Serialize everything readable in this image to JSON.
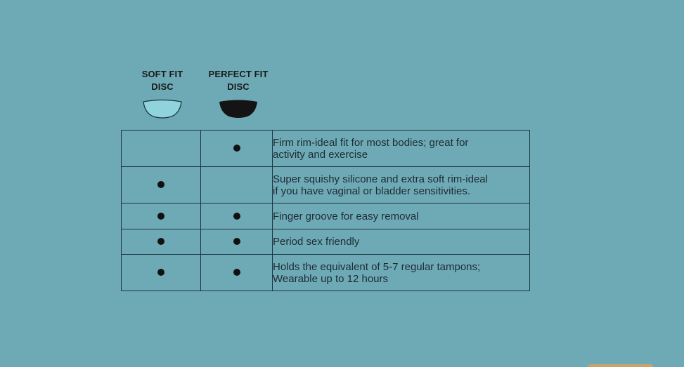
{
  "colors": {
    "background": "#6eaab5",
    "soft_disc": "#8fd3dd",
    "perfect_disc": "#141414",
    "corner_tab": "#c8a26a"
  },
  "columns": [
    {
      "line1": "SOFT FIT",
      "line2": "DISC",
      "icon": "soft-fit-disc-icon"
    },
    {
      "line1": "PERFECT FIT",
      "line2": "DISC",
      "icon": "perfect-fit-disc-icon"
    }
  ],
  "rows": [
    {
      "soft": false,
      "perfect": true,
      "line1": "Firm rim-ideal fit for most bodies; great for",
      "line2": "activity and exercise"
    },
    {
      "soft": true,
      "perfect": false,
      "line1": "Super squishy silicone and extra soft rim-ideal",
      "line2": "if you have vaginal or bladder sensitivities."
    },
    {
      "soft": true,
      "perfect": true,
      "line1": "Finger groove for easy removal",
      "line2": ""
    },
    {
      "soft": true,
      "perfect": true,
      "line1": "Period sex friendly",
      "line2": ""
    },
    {
      "soft": true,
      "perfect": true,
      "line1": "Holds the equivalent of 5-7 regular tampons;",
      "line2": "Wearable up to 12 hours"
    }
  ]
}
